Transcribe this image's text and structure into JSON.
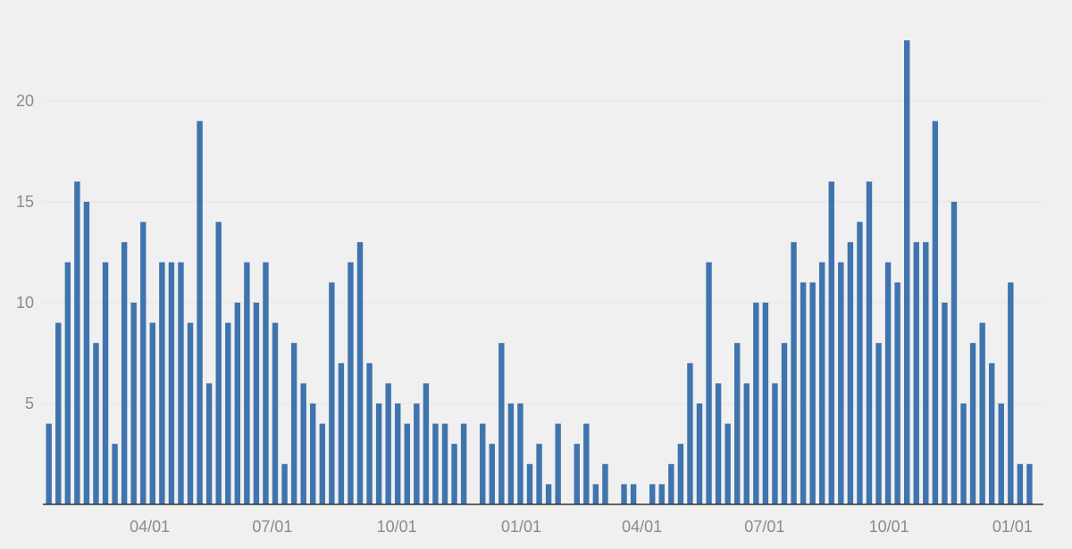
{
  "colors": {
    "bar": "#3f74ae",
    "background": "#f0f0f0",
    "grid": "#e4e4e4",
    "tick": "#8a8a8a",
    "axis": "#333333"
  },
  "chart_data": {
    "type": "bar",
    "title": "",
    "xlabel": "",
    "ylabel": "",
    "ylim": [
      0,
      23
    ],
    "grid": true,
    "legend": "none",
    "y_ticks": [
      5,
      10,
      15,
      20
    ],
    "x_ticks": [
      {
        "label": "04/01",
        "index": 10.7
      },
      {
        "label": "07/01",
        "index": 23.7
      },
      {
        "label": "10/01",
        "index": 36.9
      },
      {
        "label": "01/01",
        "index": 50.1
      },
      {
        "label": "04/01",
        "index": 62.9
      },
      {
        "label": "07/01",
        "index": 75.9
      },
      {
        "label": "10/01",
        "index": 89.1
      },
      {
        "label": "01/01",
        "index": 102.2
      }
    ],
    "values": [
      4,
      9,
      12,
      16,
      15,
      8,
      12,
      3,
      13,
      10,
      14,
      9,
      12,
      12,
      12,
      9,
      19,
      6,
      14,
      9,
      10,
      12,
      10,
      12,
      9,
      2,
      8,
      6,
      5,
      4,
      11,
      7,
      12,
      13,
      7,
      5,
      6,
      5,
      4,
      5,
      6,
      4,
      4,
      3,
      4,
      0,
      4,
      3,
      8,
      5,
      5,
      2,
      3,
      1,
      4,
      0,
      3,
      4,
      1,
      2,
      0,
      1,
      1,
      0,
      1,
      1,
      2,
      3,
      7,
      5,
      12,
      6,
      4,
      8,
      6,
      10,
      10,
      6,
      8,
      13,
      11,
      11,
      12,
      16,
      12,
      13,
      14,
      16,
      8,
      12,
      11,
      23,
      13,
      13,
      19,
      10,
      15,
      5,
      8,
      9,
      7,
      5,
      11,
      2,
      2
    ]
  }
}
